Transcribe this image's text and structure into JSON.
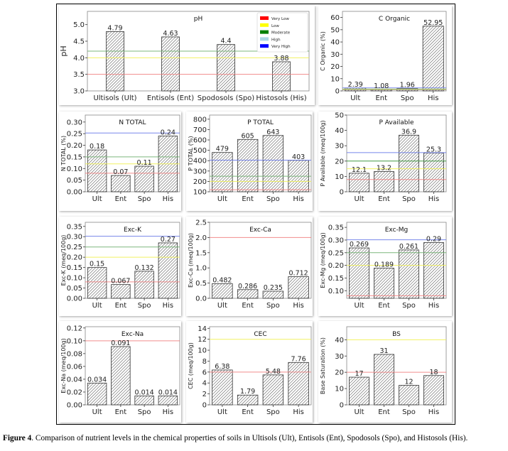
{
  "figure": {
    "caption_label": "Figure 4",
    "caption_text": ". Comparison of nutrient levels in the chemical properties of soils in Ultisols (Ult), Entisols (Ent), Spodosols (Spo), and Histosols (His)."
  },
  "legend": {
    "placement": "top-right of pH chart",
    "entries": [
      {
        "label": "Very Low",
        "color": "#ff0000"
      },
      {
        "label": "Low",
        "color": "#ffff00"
      },
      {
        "label": "Moderate",
        "color": "#008000"
      },
      {
        "label": "High",
        "color": "#add8e6"
      },
      {
        "label": "Very High",
        "color": "#0000ff"
      }
    ]
  },
  "chart_data": [
    {
      "id": "ph",
      "type": "bar",
      "title": "pH",
      "ylabel": "pH",
      "xlabel": "",
      "categories": [
        "Ultisols (Ult)",
        "Entisols (Ent)",
        "Spodosols (Spo)",
        "Histosols (His)"
      ],
      "values": [
        4.79,
        4.63,
        4.4,
        3.88
      ],
      "value_labels": [
        "4.79",
        "4.63",
        "4.4",
        "3.88"
      ],
      "ylim": [
        3.0,
        5.4
      ],
      "yticks": [
        3.0,
        3.5,
        4.0,
        4.5,
        5.0
      ],
      "ytick_labels": [
        "3.0",
        "3.5",
        "4.0",
        "4.5",
        "5.0"
      ],
      "thresholds": [
        {
          "level": "Very Low",
          "value": 3.5,
          "color": "#f08080"
        },
        {
          "level": "Low",
          "value": 4.0,
          "color": "#f0f050"
        },
        {
          "level": "Moderate",
          "value": 4.2,
          "color": "#70b070"
        }
      ],
      "legend": true
    },
    {
      "id": "c_organic",
      "type": "bar",
      "title": "C Organic",
      "ylabel": "C Organic (%)",
      "xlabel": "",
      "categories": [
        "Ult",
        "Ent",
        "Spo",
        "His"
      ],
      "values": [
        2.39,
        1.08,
        1.96,
        52.95
      ],
      "value_labels": [
        "2.39",
        "1.08",
        "1.96",
        "52.95"
      ],
      "ylim": [
        0,
        65
      ],
      "yticks": [
        0,
        10,
        20,
        30,
        40,
        50,
        60
      ],
      "ytick_labels": [
        "0",
        "10",
        "20",
        "30",
        "40",
        "50",
        "60"
      ],
      "thresholds": [
        {
          "level": "Very Low",
          "value": 1.0,
          "color": "#f08080"
        },
        {
          "level": "Low",
          "value": 1.5,
          "color": "#f0f050"
        },
        {
          "level": "Moderate",
          "value": 1.2,
          "color": "#70b070"
        },
        {
          "level": "Very High",
          "value": 2.5,
          "color": "#6a7ae8"
        }
      ]
    },
    {
      "id": "n_total",
      "type": "bar",
      "title": "N TOTAL",
      "ylabel": "N TOTAL (%)",
      "xlabel": "",
      "categories": [
        "Ult",
        "Ent",
        "Spo",
        "His"
      ],
      "values": [
        0.18,
        0.07,
        0.11,
        0.24
      ],
      "value_labels": [
        "0.18",
        "0.07",
        "0.11",
        "0.24"
      ],
      "ylim": [
        0,
        0.33
      ],
      "yticks": [
        0,
        0.05,
        0.1,
        0.15,
        0.2,
        0.25,
        0.3
      ],
      "ytick_labels": [
        "0.00",
        "0.05",
        "0.10",
        "0.15",
        "0.20",
        "0.25",
        "0.30"
      ],
      "thresholds": [
        {
          "level": "Very Low",
          "value": 0.08,
          "color": "#f08080"
        },
        {
          "level": "Low",
          "value": 0.12,
          "color": "#f0f050"
        },
        {
          "level": "Moderate",
          "value": 0.15,
          "color": "#70b070"
        },
        {
          "level": "Very High",
          "value": 0.253,
          "color": "#6a7ae8"
        }
      ]
    },
    {
      "id": "p_total",
      "type": "bar",
      "title": "P TOTAL",
      "ylabel": "P TOTAL (%)",
      "xlabel": "",
      "categories": [
        "Ult",
        "Ent",
        "Spo",
        "His"
      ],
      "values": [
        479,
        605,
        643,
        403
      ],
      "value_labels": [
        "479",
        "605",
        "643",
        "403"
      ],
      "ylim": [
        100,
        840
      ],
      "yticks": [
        100,
        200,
        300,
        400,
        500,
        600,
        700,
        800
      ],
      "ytick_labels": [
        "100",
        "200",
        "300",
        "400",
        "500",
        "600",
        "700",
        "800"
      ],
      "thresholds": [
        {
          "level": "Very Low",
          "value": 120,
          "color": "#f08080"
        },
        {
          "level": "Low",
          "value": 200,
          "color": "#f0f050"
        },
        {
          "level": "Moderate",
          "value": 250,
          "color": "#70b070"
        },
        {
          "level": "Very High",
          "value": 405,
          "color": "#6a7ae8"
        }
      ]
    },
    {
      "id": "p_available",
      "type": "bar",
      "title": "P Available",
      "ylabel": "P Available (meq/100g)",
      "xlabel": "",
      "categories": [
        "Ult",
        "Ent",
        "Spo",
        "His"
      ],
      "values": [
        12.1,
        13.2,
        36.9,
        25.3
      ],
      "value_labels": [
        "12.1",
        "13.2",
        "36.9",
        "25.3"
      ],
      "ylim": [
        0,
        50
      ],
      "yticks": [
        0,
        10,
        20,
        30,
        40,
        50
      ],
      "ytick_labels": [
        "0",
        "10",
        "20",
        "30",
        "40",
        "50"
      ],
      "thresholds": [
        {
          "level": "Very Low",
          "value": 8,
          "color": "#f08080"
        },
        {
          "level": "Low",
          "value": 15,
          "color": "#f0f050"
        },
        {
          "level": "Moderate",
          "value": 20,
          "color": "#309030"
        },
        {
          "level": "Very High",
          "value": 25.5,
          "color": "#6a7ae8"
        }
      ]
    },
    {
      "id": "exc_k",
      "type": "bar",
      "title": "Exc-K",
      "ylabel": "Exc-K (meq/100g)",
      "xlabel": "",
      "categories": [
        "Ult",
        "Ent",
        "Spo",
        "His"
      ],
      "values": [
        0.15,
        0.067,
        0.132,
        0.27
      ],
      "value_labels": [
        "0.15",
        "0.067",
        "0.132",
        "0.27"
      ],
      "ylim": [
        0,
        0.37
      ],
      "yticks": [
        0,
        0.05,
        0.1,
        0.15,
        0.2,
        0.25,
        0.3,
        0.35
      ],
      "ytick_labels": [
        "0.00",
        "0.05",
        "0.10",
        "0.15",
        "0.20",
        "0.25",
        "0.30",
        "0.35"
      ],
      "thresholds": [
        {
          "level": "Very Low",
          "value": 0.08,
          "color": "#f08080"
        },
        {
          "level": "Low",
          "value": 0.2,
          "color": "#f0f050"
        },
        {
          "level": "Moderate",
          "value": 0.25,
          "color": "#70b070"
        },
        {
          "level": "Very High",
          "value": 0.302,
          "color": "#6a7ae8"
        }
      ]
    },
    {
      "id": "exc_ca",
      "type": "bar",
      "title": "Exc-Ca",
      "ylabel": "Exc-Ca (meq/100g)",
      "xlabel": "",
      "categories": [
        "Ult",
        "Ent",
        "Spo",
        "His"
      ],
      "values": [
        0.482,
        0.286,
        0.235,
        0.712
      ],
      "value_labels": [
        "0.482",
        "0.286",
        "0.235",
        "0.712"
      ],
      "ylim": [
        0,
        2.5
      ],
      "yticks": [
        0,
        0.5,
        1.0,
        1.5,
        2.0,
        2.5
      ],
      "ytick_labels": [
        "0.0",
        "0.5",
        "1.0",
        "1.5",
        "2.0",
        "2.5"
      ],
      "thresholds": [
        {
          "level": "Very Low",
          "value": 2.0,
          "color": "#f08080"
        }
      ]
    },
    {
      "id": "exc_mg",
      "type": "bar",
      "title": "Exc-Mg",
      "ylabel": "Exc-Mg (meq/100g)",
      "xlabel": "",
      "categories": [
        "Ult",
        "Ent",
        "Spo",
        "His"
      ],
      "values": [
        0.269,
        0.189,
        0.261,
        0.29
      ],
      "value_labels": [
        "0.269",
        "0.189",
        "0.261",
        "0.29"
      ],
      "ylim": [
        0.07,
        0.37
      ],
      "yticks": [
        0.1,
        0.15,
        0.2,
        0.25,
        0.3,
        0.35
      ],
      "ytick_labels": [
        "0.10",
        "0.15",
        "0.20",
        "0.25",
        "0.30",
        "0.35"
      ],
      "thresholds": [
        {
          "level": "Very Low",
          "value": 0.08,
          "color": "#f08080"
        },
        {
          "level": "Low",
          "value": 0.2,
          "color": "#f0f050"
        },
        {
          "level": "Moderate",
          "value": 0.25,
          "color": "#70b070"
        },
        {
          "level": "Very High",
          "value": 0.301,
          "color": "#6a7ae8"
        }
      ]
    },
    {
      "id": "exc_na",
      "type": "bar",
      "title": "Exc-Na",
      "ylabel": "Exc-Na (meq/100g)",
      "xlabel": "",
      "categories": [
        "Ult",
        "Ent",
        "Spo",
        "His"
      ],
      "values": [
        0.034,
        0.091,
        0.014,
        0.014
      ],
      "value_labels": [
        "0.034",
        "0.091",
        "0.014",
        "0.014"
      ],
      "ylim": [
        0,
        0.122
      ],
      "yticks": [
        0,
        0.02,
        0.04,
        0.06,
        0.08,
        0.1,
        0.12
      ],
      "ytick_labels": [
        "0.00",
        "0.02",
        "0.04",
        "0.06",
        "0.08",
        "0.10",
        "0.12"
      ],
      "thresholds": [
        {
          "level": "Very Low",
          "value": 0.1,
          "color": "#f08080"
        }
      ]
    },
    {
      "id": "cec",
      "type": "bar",
      "title": "CEC",
      "ylabel": "CEC (meq/100g)",
      "xlabel": "",
      "categories": [
        "Ult",
        "Ent",
        "Spo",
        "His"
      ],
      "values": [
        6.38,
        1.79,
        5.48,
        7.76
      ],
      "value_labels": [
        "6.38",
        "1.79",
        "5.48",
        "7.76"
      ],
      "ylim": [
        0,
        14.3
      ],
      "yticks": [
        0,
        2,
        4,
        6,
        8,
        10,
        12,
        14
      ],
      "ytick_labels": [
        "0",
        "2",
        "4",
        "6",
        "8",
        "10",
        "12",
        "14"
      ],
      "thresholds": [
        {
          "level": "Very Low",
          "value": 6,
          "color": "#f08080"
        },
        {
          "level": "Low",
          "value": 12,
          "color": "#f0f050"
        }
      ]
    },
    {
      "id": "bs",
      "type": "bar",
      "title": "BS",
      "ylabel": "Base Saturation (%)",
      "xlabel": "",
      "categories": [
        "Ult",
        "Ent",
        "Spo",
        "His"
      ],
      "values": [
        17,
        31,
        12,
        18
      ],
      "value_labels": [
        "17",
        "31",
        "12",
        "18"
      ],
      "ylim": [
        0,
        48
      ],
      "yticks": [
        0,
        10,
        20,
        30,
        40
      ],
      "ytick_labels": [
        "0",
        "10",
        "20",
        "30",
        "40"
      ],
      "thresholds": [
        {
          "level": "Very Low",
          "value": 20,
          "color": "#f08080"
        },
        {
          "level": "Low",
          "value": 40,
          "color": "#f0f050"
        }
      ]
    }
  ]
}
